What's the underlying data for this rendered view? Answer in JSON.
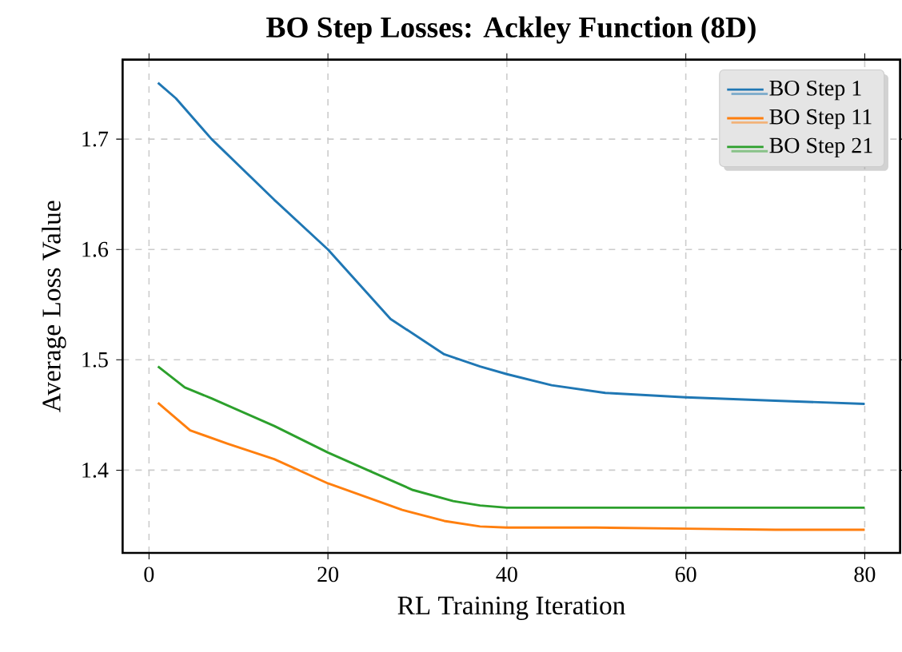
{
  "chart_data": {
    "type": "line",
    "title": "BO Step Losses: Ackley Function (8D)",
    "xlabel": "RL Training Iteration",
    "ylabel": "Average Loss Value",
    "xlim": [
      -2.95,
      83.95
    ],
    "ylim": [
      1.325,
      1.772
    ],
    "xticks": [
      0,
      20,
      40,
      60,
      80
    ],
    "yticks": [
      1.4,
      1.5,
      1.6,
      1.7
    ],
    "grid": true,
    "legend": "top right",
    "line_style": "solid",
    "marker": "none",
    "series": [
      {
        "name": "BO Step 1",
        "color": "#1f77b4",
        "x": [
          1,
          3,
          7,
          14,
          20,
          27,
          33,
          37,
          40,
          45,
          51,
          60,
          70,
          80
        ],
        "values": [
          1.751,
          1.737,
          1.7,
          1.645,
          1.6,
          1.537,
          1.505,
          1.494,
          1.487,
          1.477,
          1.47,
          1.466,
          1.463,
          1.46
        ]
      },
      {
        "name": "BO Step 11",
        "color": "#ff7f0e",
        "x": [
          1,
          4.6,
          8.8,
          14,
          20,
          28.3,
          33,
          37,
          40,
          50,
          60,
          70,
          80
        ],
        "values": [
          1.461,
          1.436,
          1.424,
          1.41,
          1.388,
          1.364,
          1.354,
          1.349,
          1.348,
          1.348,
          1.347,
          1.346,
          1.346
        ]
      },
      {
        "name": "BO Step 21",
        "color": "#2ca02c",
        "x": [
          1,
          4,
          7,
          14,
          20,
          25,
          29.5,
          34,
          37,
          40,
          50,
          60,
          70,
          80
        ],
        "values": [
          1.494,
          1.475,
          1.465,
          1.44,
          1.416,
          1.398,
          1.382,
          1.372,
          1.368,
          1.366,
          1.366,
          1.366,
          1.366,
          1.366
        ]
      }
    ]
  }
}
